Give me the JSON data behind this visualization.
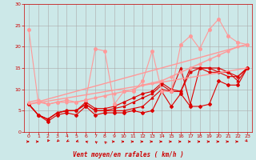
{
  "xlabel": "Vent moyen/en rafales ( km/h )",
  "bg_color": "#cce8e8",
  "grid_color": "#aaaaaa",
  "xlim": [
    -0.5,
    23.5
  ],
  "ylim": [
    0,
    30
  ],
  "xticks": [
    0,
    1,
    2,
    3,
    4,
    5,
    6,
    7,
    8,
    9,
    10,
    11,
    12,
    13,
    14,
    15,
    16,
    17,
    18,
    19,
    20,
    21,
    22,
    23
  ],
  "yticks": [
    0,
    5,
    10,
    15,
    20,
    25,
    30
  ],
  "series": [
    {
      "x": [
        0,
        1,
        2,
        3,
        4,
        5,
        6,
        7,
        8,
        9,
        10,
        11,
        12,
        13,
        14,
        15,
        16,
        17,
        18,
        19,
        20,
        21,
        22,
        23
      ],
      "y": [
        6.5,
        4,
        2.5,
        4,
        4.5,
        4,
        6,
        4,
        4.5,
        4.5,
        4.5,
        5,
        4.5,
        5,
        9.5,
        6,
        9,
        6,
        6,
        6.5,
        12,
        11,
        11,
        15
      ],
      "color": "#dd0000",
      "lw": 0.8,
      "marker": "D",
      "ms": 2.0
    },
    {
      "x": [
        0,
        1,
        2,
        3,
        4,
        5,
        6,
        7,
        8,
        9,
        10,
        11,
        12,
        13,
        14,
        15,
        16,
        17,
        18,
        19,
        20,
        21,
        22,
        23
      ],
      "y": [
        6.5,
        4,
        3,
        4.5,
        5,
        5,
        6.5,
        5,
        5,
        5,
        5,
        5.5,
        6,
        8,
        10,
        9.5,
        15,
        6.5,
        15,
        15,
        15,
        14,
        12,
        15
      ],
      "color": "#dd0000",
      "lw": 0.8,
      "marker": "^",
      "ms": 2.0
    },
    {
      "x": [
        0,
        1,
        2,
        3,
        4,
        5,
        6,
        7,
        8,
        9,
        10,
        11,
        12,
        13,
        14,
        15,
        16,
        17,
        18,
        19,
        20,
        21,
        22,
        23
      ],
      "y": [
        6.5,
        4,
        3,
        4.5,
        5,
        5,
        6.5,
        5,
        5,
        5.5,
        6,
        7,
        8,
        9,
        11,
        9.5,
        9.5,
        15,
        15,
        15,
        14,
        13,
        13,
        15
      ],
      "color": "#dd0000",
      "lw": 0.8,
      "marker": "s",
      "ms": 2.0
    },
    {
      "x": [
        0,
        1,
        2,
        3,
        4,
        5,
        6,
        7,
        8,
        9,
        10,
        11,
        12,
        13,
        14,
        15,
        16,
        17,
        18,
        19,
        20,
        21,
        22,
        23
      ],
      "y": [
        6.5,
        4,
        3,
        4.5,
        5,
        5,
        7,
        5.5,
        5.5,
        6,
        7,
        8,
        9,
        9.5,
        11.5,
        10,
        9.5,
        14,
        15,
        14,
        14,
        14,
        13,
        15
      ],
      "color": "#dd0000",
      "lw": 0.8,
      "marker": "o",
      "ms": 2.0
    },
    {
      "x": [
        0,
        1,
        2,
        3,
        4,
        5,
        6,
        7,
        8,
        9,
        10,
        11,
        12,
        13,
        14,
        15,
        16,
        17,
        18,
        19,
        20,
        21,
        22,
        23
      ],
      "y": [
        24,
        7,
        6.5,
        7,
        7.5,
        7,
        7.5,
        19.5,
        19,
        6.5,
        9.5,
        9.5,
        12,
        19,
        9.5,
        9.5,
        20.5,
        22.5,
        19.5,
        24,
        26.5,
        22.5,
        21,
        20.5
      ],
      "color": "#ff9999",
      "lw": 0.8,
      "marker": "o",
      "ms": 2.5
    },
    {
      "x": [
        0,
        1,
        2,
        3,
        4,
        5,
        6,
        7,
        8,
        9,
        10,
        11,
        12,
        13,
        14,
        15,
        16,
        17,
        18,
        19,
        20,
        21,
        22,
        23
      ],
      "y": [
        7,
        7.5,
        6.5,
        7,
        7,
        7,
        7.5,
        8,
        8.5,
        9,
        9.5,
        10,
        11,
        11.5,
        12,
        13,
        14,
        15,
        16,
        17,
        18,
        19,
        20,
        20.5
      ],
      "color": "#ff9999",
      "lw": 1.0,
      "marker": "o",
      "ms": 2.0
    },
    {
      "x": [
        0,
        23
      ],
      "y": [
        6.5,
        20.5
      ],
      "color": "#ff9999",
      "lw": 1.0,
      "marker": null,
      "ms": 0
    },
    {
      "x": [
        0,
        23
      ],
      "y": [
        6.5,
        15.0
      ],
      "color": "#ff9999",
      "lw": 1.0,
      "marker": null,
      "ms": 0
    }
  ],
  "wind_arrows": {
    "x": [
      0,
      1,
      2,
      3,
      4,
      5,
      6,
      7,
      8,
      9,
      10,
      11,
      12,
      13,
      14,
      15,
      16,
      17,
      18,
      19,
      20,
      21,
      22,
      23
    ],
    "angles": [
      90,
      90,
      210,
      225,
      240,
      250,
      280,
      300,
      315,
      90,
      90,
      90,
      90,
      90,
      90,
      90,
      90,
      90,
      90,
      90,
      90,
      90,
      90,
      135
    ]
  }
}
